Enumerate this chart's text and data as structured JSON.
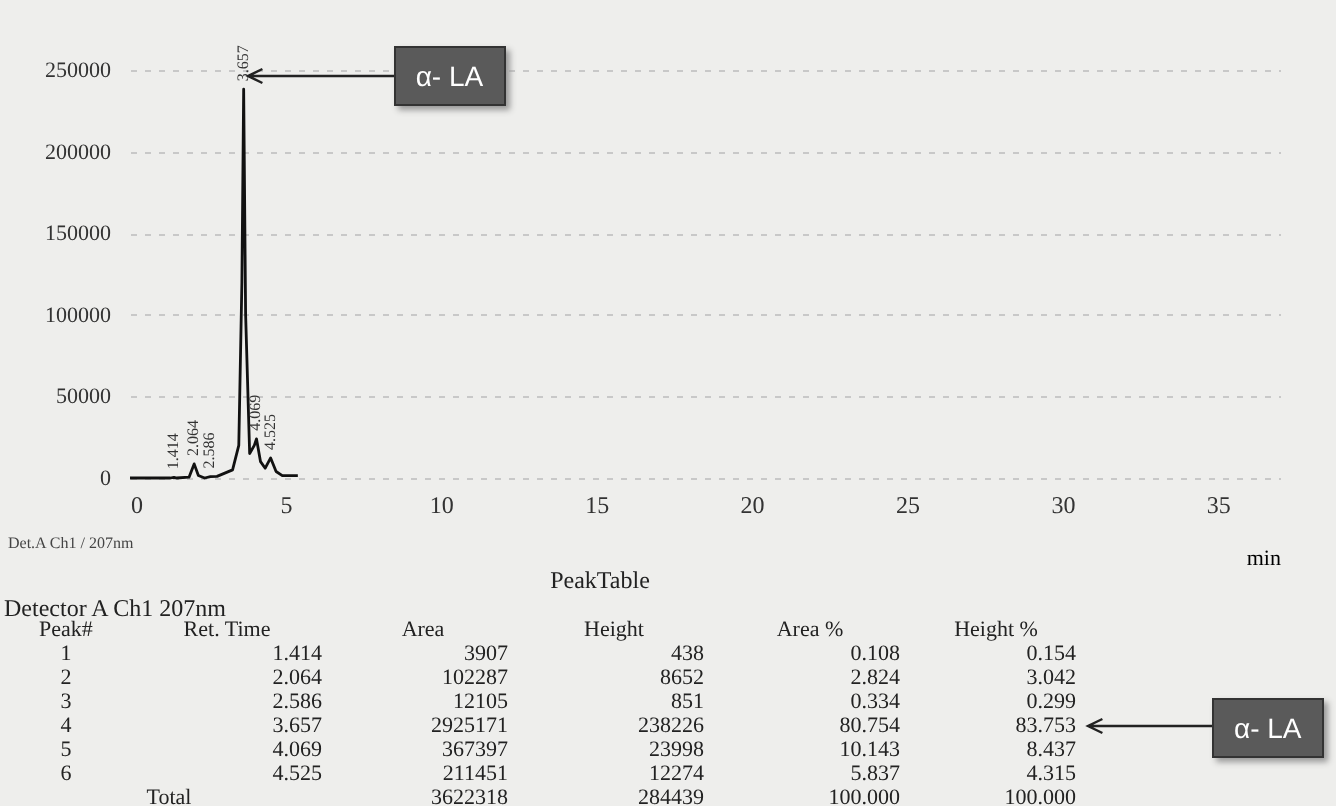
{
  "chart_data": {
    "type": "line",
    "x": [
      0,
      1.3,
      1.414,
      1.5,
      1.9,
      2.064,
      2.2,
      2.4,
      2.586,
      2.8,
      3.3,
      3.5,
      3.6,
      3.657,
      3.72,
      3.85,
      4.0,
      4.069,
      4.2,
      4.35,
      4.525,
      4.7,
      4.9,
      5.4
    ],
    "series": [
      {
        "color": "#111111",
        "values": [
          0,
          0,
          438,
          0,
          500,
          8652,
          1500,
          0,
          851,
          1000,
          5000,
          20000,
          120000,
          238226,
          100000,
          15000,
          20000,
          23998,
          10000,
          6000,
          12274,
          4000,
          1500,
          1500
        ]
      }
    ],
    "xlim": [
      0,
      37
    ],
    "ylim": [
      0,
      250000
    ],
    "xticks": [
      0,
      5,
      10,
      15,
      20,
      25,
      30,
      35
    ],
    "yticks": [
      0,
      50000,
      100000,
      150000,
      200000,
      250000
    ],
    "xlabel": "min",
    "grid": "y",
    "marker": "none",
    "line_style": "solid",
    "annotations": [
      {
        "text": "α- LA",
        "x": 3.657,
        "y": 238226
      },
      {
        "text": "1.414",
        "x": 1.414,
        "y": 438
      },
      {
        "text": "2.064",
        "x": 2.064,
        "y": 8652
      },
      {
        "text": "2.586",
        "x": 2.586,
        "y": 851
      },
      {
        "text": "3.657",
        "x": 3.657,
        "y": 238226
      },
      {
        "text": "4.069",
        "x": 4.069,
        "y": 23998
      },
      {
        "text": "4.525",
        "x": 4.525,
        "y": 12274
      },
      "Det.A Ch1 / 207nm",
      "PeakTable",
      "Detector A Ch1 207nm",
      "Peak#",
      "Ret. Time",
      "Area",
      "Height",
      "Area %",
      "Height %",
      "1",
      "1.414",
      "3907",
      "438",
      "0.108",
      "0.154",
      "2",
      "2.064",
      "102287",
      "8652",
      "2.824",
      "3.042",
      "3",
      "2.586",
      "12105",
      "851",
      "0.334",
      "0.299",
      "4",
      "3.657",
      "2925171",
      "238226",
      "80.754",
      "83.753",
      "5",
      "4.069",
      "367397",
      "23998",
      "10.143",
      "8.437",
      "6",
      "4.525",
      "211451",
      "12274",
      "5.837",
      "4.315",
      "Total",
      "3622318",
      "284439",
      "100.000",
      "100.000",
      "α- LA"
    ]
  }
}
